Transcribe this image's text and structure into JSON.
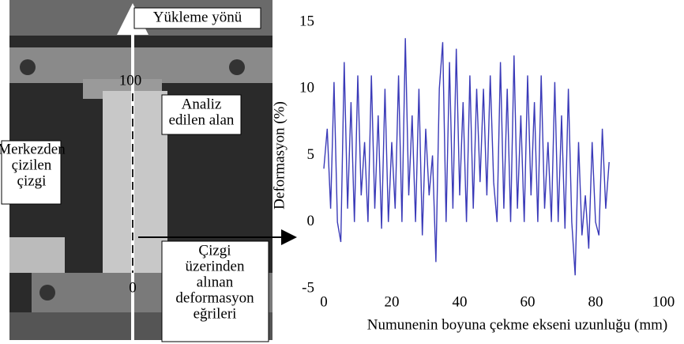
{
  "chart_data": {
    "type": "line",
    "x_label": "Numunenin boyuna çekme ekseni uzunluğu (mm)",
    "y_label": "Deformasyon (%)",
    "xlim": [
      0,
      100
    ],
    "xticks": [
      0,
      20,
      40,
      60,
      80,
      100
    ],
    "ylim": [
      -5,
      15
    ],
    "yticks": [
      -5,
      0,
      5,
      10,
      15
    ],
    "x": [
      0,
      1,
      2,
      3,
      4,
      5,
      6,
      7,
      8,
      9,
      10,
      11,
      12,
      13,
      14,
      15,
      16,
      17,
      18,
      19,
      20,
      21,
      22,
      23,
      24,
      25,
      26,
      27,
      28,
      29,
      30,
      31,
      32,
      33,
      34,
      35,
      36,
      37,
      38,
      39,
      40,
      41,
      42,
      43,
      44,
      45,
      46,
      47,
      48,
      49,
      50,
      51,
      52,
      53,
      54,
      55,
      56,
      57,
      58,
      59,
      60,
      61,
      62,
      63,
      64,
      65,
      66,
      67,
      68,
      69,
      70,
      71,
      72,
      73,
      74,
      75,
      76,
      77,
      78,
      79,
      80,
      81,
      82,
      83,
      84
    ],
    "series": [
      {
        "color": "#3a3ab8",
        "values": [
          4,
          7,
          1,
          10.5,
          0,
          -1.5,
          12,
          1,
          9,
          0,
          11,
          2,
          6,
          0,
          11,
          1,
          8,
          -0.5,
          10,
          0,
          6,
          1,
          11,
          0,
          13.8,
          2,
          8,
          0,
          10,
          -1,
          7,
          2,
          5,
          -3,
          10,
          13.5,
          0,
          12,
          1,
          13,
          2,
          9,
          0,
          11,
          1,
          10,
          3,
          10,
          2,
          11,
          3,
          0,
          12,
          1,
          10,
          0,
          12.5,
          1,
          8,
          0,
          11,
          2,
          9,
          0,
          11,
          1,
          6,
          0,
          10.5,
          0,
          8,
          -0.5,
          10,
          0,
          -4,
          6,
          -1,
          2,
          -2,
          6,
          0,
          -1,
          7,
          1,
          4.5
        ]
      }
    ],
    "annotations": [
      {
        "lines": [
          "Yükleme yönü"
        ]
      },
      {
        "lines": [
          "100"
        ]
      },
      {
        "lines": [
          "Analiz",
          "edilen alan"
        ]
      },
      {
        "lines": [
          "Merkezden",
          "çizilen",
          "çizgi"
        ]
      },
      {
        "lines": [
          "Çizgi",
          "üzerinden",
          "alınan",
          "deformasyon",
          "eğrileri"
        ]
      },
      {
        "lines": [
          "0"
        ]
      }
    ]
  }
}
